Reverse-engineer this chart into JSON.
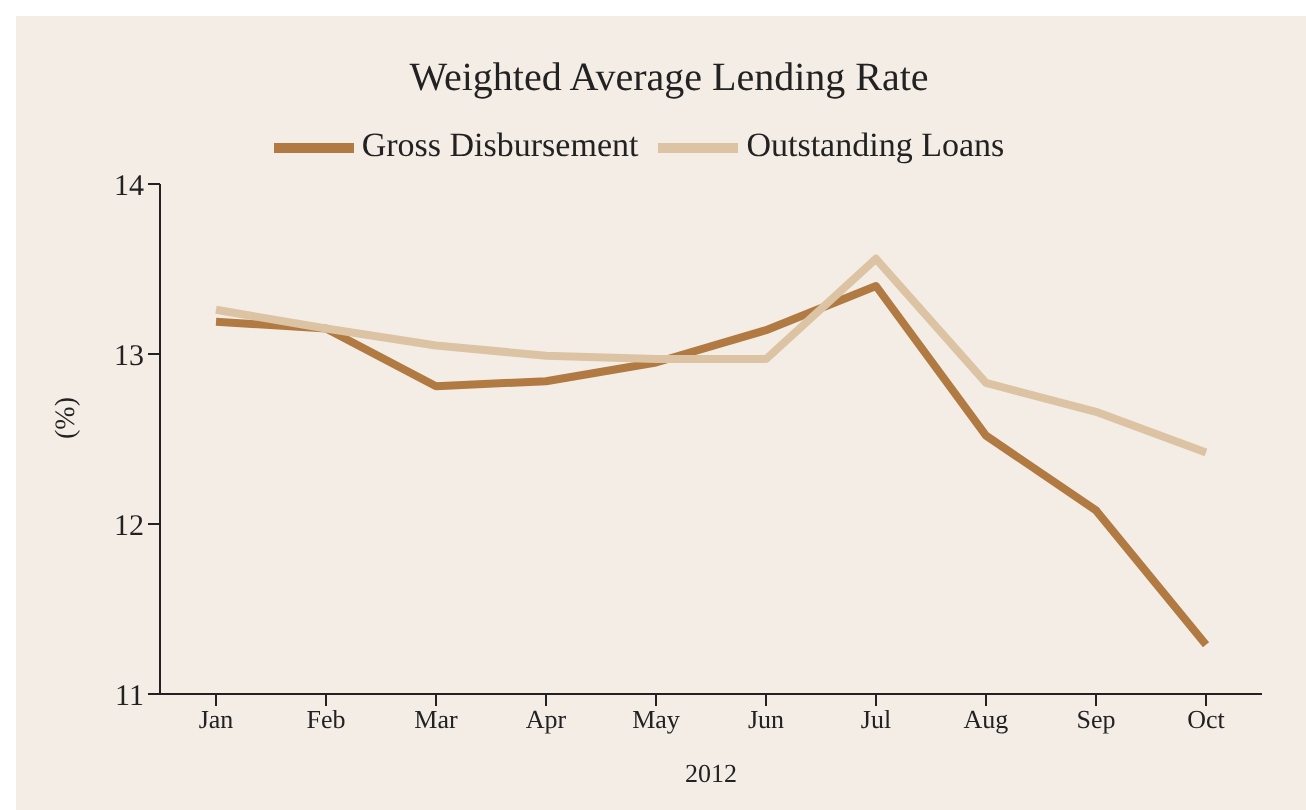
{
  "chart_data": {
    "type": "line",
    "title": "Weighted Average Lending Rate",
    "xlabel": "2012",
    "ylabel": "(%)",
    "categories": [
      "Jan",
      "Feb",
      "Mar",
      "Apr",
      "May",
      "Jun",
      "Jul",
      "Aug",
      "Sep",
      "Oct"
    ],
    "series": [
      {
        "name": "Gross Disbursement",
        "color": "#b07a42",
        "values": [
          13.19,
          13.15,
          12.81,
          12.84,
          12.95,
          13.14,
          13.4,
          12.52,
          12.08,
          11.29
        ]
      },
      {
        "name": "Outstanding Loans",
        "color": "#dcc3a3",
        "values": [
          13.26,
          13.15,
          13.05,
          12.99,
          12.97,
          12.97,
          13.56,
          12.83,
          12.66,
          12.42
        ]
      }
    ],
    "ylim": [
      11,
      14
    ],
    "yticks": [
      11,
      12,
      13,
      14
    ],
    "grid": false,
    "legend": "top",
    "marker": "none",
    "line_style": "solid"
  }
}
